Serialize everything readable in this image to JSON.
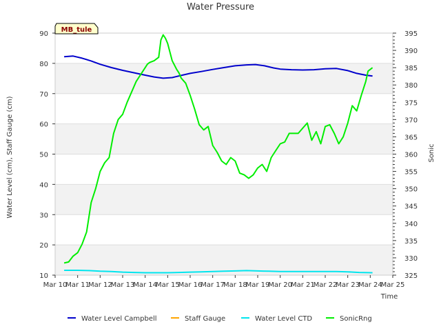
{
  "chart_data": {
    "type": "line",
    "title": "Water Pressure",
    "station_label": "MB_tule",
    "xlabel": "Time",
    "ylabel_left": "Water Level (cm), Staff Gauge (cm)",
    "ylabel_right": "Sonic",
    "x_range": [
      10,
      25
    ],
    "y_left_range": [
      10,
      90
    ],
    "y_right_range": [
      325,
      395
    ],
    "x_ticks": [
      10,
      11,
      12,
      13,
      14,
      15,
      16,
      17,
      18,
      19,
      20,
      21,
      22,
      23,
      24,
      25
    ],
    "x_tick_labels": [
      "Mar 10",
      "Mar 11",
      "Mar 12",
      "Mar 13",
      "Mar 14",
      "Mar 15",
      "Mar 16",
      "Mar 17",
      "Mar 18",
      "Mar 19",
      "Mar 20",
      "Mar 21",
      "Mar 22",
      "Mar 23",
      "Mar 24",
      "Mar 25"
    ],
    "y_left_ticks": [
      10,
      20,
      30,
      40,
      50,
      60,
      70,
      80,
      90
    ],
    "y_left_tick_labels": [
      "10",
      "20",
      "30",
      "40",
      "50",
      "60",
      "70",
      "80",
      "90"
    ],
    "y_right_ticks": [
      325,
      330,
      335,
      340,
      345,
      350,
      355,
      360,
      365,
      370,
      375,
      380,
      385,
      390,
      395
    ],
    "y_right_tick_labels": [
      "325",
      "330",
      "335",
      "340",
      "345",
      "350",
      "355",
      "360",
      "365",
      "370",
      "375",
      "380",
      "385",
      "390",
      "395"
    ],
    "series": [
      {
        "name": "Water Level Campbell",
        "color": "#0000cc",
        "axis": "left",
        "x": [
          10.4,
          10.8,
          11.2,
          11.6,
          12.0,
          12.5,
          13.0,
          13.5,
          14.0,
          14.4,
          14.8,
          15.2,
          15.6,
          16.0,
          16.5,
          17.0,
          17.5,
          18.0,
          18.5,
          18.9,
          19.3,
          19.7,
          20.0,
          20.5,
          21.0,
          21.5,
          22.0,
          22.5,
          23.0,
          23.4,
          23.8,
          24.1
        ],
        "values": [
          82.2,
          82.4,
          81.7,
          80.8,
          79.7,
          78.6,
          77.7,
          76.9,
          76.1,
          75.5,
          75.1,
          75.3,
          76.0,
          76.7,
          77.3,
          78.0,
          78.6,
          79.2,
          79.5,
          79.6,
          79.2,
          78.5,
          78.1,
          77.9,
          77.8,
          77.9,
          78.2,
          78.3,
          77.6,
          76.7,
          76.1,
          75.8
        ]
      },
      {
        "name": "Staff Gauge",
        "color": "#ffa500",
        "axis": "left",
        "x": [],
        "values": []
      },
      {
        "name": "Water Level CTD",
        "color": "#00e5ee",
        "axis": "left",
        "x": [
          10.4,
          11.0,
          11.5,
          12.0,
          12.5,
          13.0,
          13.5,
          14.0,
          14.5,
          15.0,
          15.5,
          16.0,
          16.5,
          17.0,
          17.5,
          18.0,
          18.5,
          19.0,
          19.5,
          20.0,
          20.5,
          21.0,
          21.5,
          22.0,
          22.5,
          23.0,
          23.5,
          24.1
        ],
        "values": [
          11.6,
          11.6,
          11.5,
          11.3,
          11.2,
          11.0,
          10.9,
          10.8,
          10.8,
          10.8,
          10.9,
          11.0,
          11.1,
          11.2,
          11.3,
          11.4,
          11.5,
          11.4,
          11.3,
          11.2,
          11.2,
          11.2,
          11.2,
          11.2,
          11.2,
          11.1,
          10.9,
          10.8
        ]
      },
      {
        "name": "SonicRng",
        "color": "#00ee00",
        "axis": "right",
        "x": [
          10.4,
          10.6,
          10.8,
          11.0,
          11.2,
          11.4,
          11.6,
          11.8,
          12.0,
          12.2,
          12.4,
          12.6,
          12.8,
          13.0,
          13.2,
          13.4,
          13.6,
          13.8,
          14.0,
          14.1,
          14.2,
          14.4,
          14.6,
          14.7,
          14.8,
          14.9,
          15.0,
          15.2,
          15.4,
          15.5,
          15.6,
          15.8,
          16.0,
          16.2,
          16.4,
          16.6,
          16.8,
          17.0,
          17.2,
          17.4,
          17.6,
          17.8,
          18.0,
          18.2,
          18.4,
          18.6,
          18.8,
          19.0,
          19.2,
          19.4,
          19.6,
          19.8,
          20.0,
          20.2,
          20.4,
          20.6,
          20.8,
          21.0,
          21.2,
          21.4,
          21.6,
          21.8,
          22.0,
          22.2,
          22.4,
          22.6,
          22.8,
          23.0,
          23.2,
          23.4,
          23.6,
          23.8,
          23.9,
          24.0,
          24.1
        ],
        "values": [
          328.5,
          328.8,
          330.5,
          331.5,
          334.0,
          337.5,
          346.0,
          350.0,
          355.0,
          357.5,
          359.0,
          366.0,
          370.0,
          371.5,
          375.0,
          378.0,
          381.0,
          383.0,
          385.0,
          386.0,
          386.5,
          387.0,
          388.0,
          393.0,
          394.5,
          393.5,
          392.0,
          387.0,
          384.5,
          383.5,
          382.0,
          380.5,
          377.0,
          373.0,
          368.5,
          367.0,
          368.0,
          362.5,
          360.5,
          358.0,
          357.0,
          359.0,
          358.0,
          354.5,
          354.0,
          353.0,
          354.0,
          356.0,
          357.0,
          355.0,
          359.0,
          361.0,
          363.0,
          363.5,
          366.0,
          366.0,
          366.0,
          367.5,
          369.0,
          364.0,
          366.5,
          363.0,
          368.0,
          368.5,
          366.0,
          363.0,
          365.0,
          369.0,
          374.0,
          372.5,
          377.0,
          381.0,
          384.0,
          384.5,
          385.0
        ]
      }
    ],
    "legend": [
      "Water Level Campbell",
      "Staff Gauge",
      "Water Level CTD",
      "SonicRng"
    ],
    "legend_position": "bottom",
    "grid": true
  }
}
